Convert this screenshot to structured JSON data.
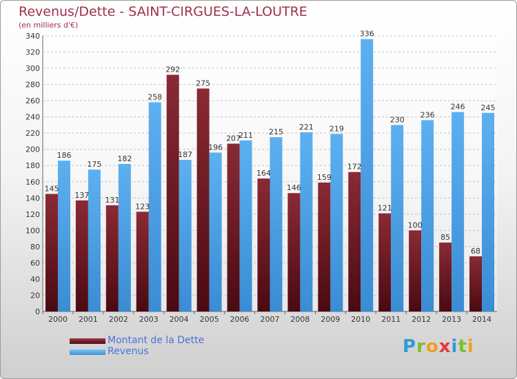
{
  "header": {
    "title": "Revenus/Dette - SAINT-CIRGUES-LA-LOUTRE",
    "subtitle": "(en milliers d'€)"
  },
  "legend": {
    "debt_label": "Montant de la Dette",
    "revenue_label": "Revenus"
  },
  "logo": {
    "letters": [
      "P",
      "r",
      "o",
      "x",
      "i",
      "t",
      "i"
    ],
    "colors": [
      "#2f9ad8",
      "#7bbf2a",
      "#f0a020",
      "#e03a3a",
      "#2f9ad8",
      "#7bbf2a",
      "#f0a020"
    ]
  },
  "colors": {
    "title": "#a0304a",
    "debt": "#7a1f2a",
    "revenue": "#4ea6ea",
    "legend_text": "#4a6fdc"
  },
  "chart_data": {
    "type": "bar",
    "title": "Revenus/Dette - SAINT-CIRGUES-LA-LOUTRE",
    "subtitle": "(en milliers d'€)",
    "categories": [
      "2000",
      "2001",
      "2002",
      "2003",
      "2004",
      "2005",
      "2006",
      "2007",
      "2008",
      "2009",
      "2010",
      "2011",
      "2012",
      "2013",
      "2014"
    ],
    "series": [
      {
        "name": "Montant de la Dette",
        "values": [
          145,
          137,
          131,
          123,
          292,
          275,
          207,
          164,
          146,
          159,
          172,
          121,
          100,
          85,
          68
        ]
      },
      {
        "name": "Revenus",
        "values": [
          186,
          175,
          182,
          258,
          187,
          196,
          211,
          215,
          221,
          219,
          336,
          230,
          236,
          246,
          245
        ]
      }
    ],
    "ylim": [
      0,
      340
    ],
    "yticks": [
      0,
      20,
      40,
      60,
      80,
      100,
      120,
      140,
      160,
      180,
      200,
      220,
      240,
      260,
      280,
      300,
      320,
      340
    ],
    "grid": true,
    "legend_position": "bottom-left"
  }
}
